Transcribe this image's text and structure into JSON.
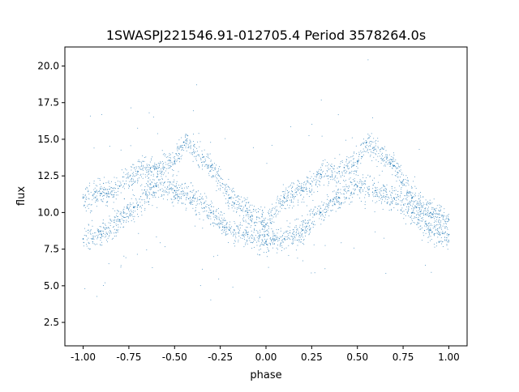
{
  "chart_data": {
    "type": "scatter",
    "title": "1SWASPJ221546.91-012705.4 Period 3578264.0s",
    "xlabel": "phase",
    "ylabel": "flux",
    "xlim": [
      -1.1,
      1.1
    ],
    "ylim": [
      0.9,
      21.3
    ],
    "xticks": [
      "-1.00",
      "-0.75",
      "-0.50",
      "-0.25",
      "0.00",
      "0.25",
      "0.50",
      "0.75",
      "1.00"
    ],
    "xtick_values": [
      -1,
      -0.75,
      -0.5,
      -0.25,
      0,
      0.25,
      0.5,
      0.75,
      1
    ],
    "yticks": [
      "2.5",
      "5.0",
      "7.5",
      "10.0",
      "12.5",
      "15.0",
      "17.5",
      "20.0"
    ],
    "ytick_values": [
      2.5,
      5,
      7.5,
      10,
      12.5,
      15,
      17.5,
      20
    ],
    "grid": false,
    "marker_color": "#1f77b4",
    "series": [
      {
        "x": [
          -1,
          -0.9,
          -0.8,
          -0.7,
          -0.6,
          -0.5,
          -0.45,
          -0.3,
          -0.2,
          -0.1,
          0,
          0.1,
          0.2,
          0.3,
          0.4,
          0.5,
          0.55,
          0.7,
          0.8,
          0.9,
          1
        ],
        "y": [
          11,
          11.3,
          11.8,
          12.8,
          13,
          13.5,
          14.8,
          13.2,
          11,
          10,
          9.2,
          11,
          11.5,
          12.6,
          12.8,
          13.5,
          14.8,
          13.2,
          11,
          10,
          9.5
        ]
      },
      {
        "x": [
          -1,
          -0.9,
          -0.8,
          -0.7,
          -0.6,
          -0.5,
          -0.4,
          -0.3,
          -0.2,
          -0.1,
          0,
          0.1,
          0.2,
          0.3,
          0.4,
          0.5,
          0.6,
          0.7,
          0.8,
          0.9,
          1
        ],
        "y": [
          8.2,
          8.5,
          9.5,
          10.5,
          11.8,
          11.5,
          11,
          10,
          8.8,
          8.5,
          8.0,
          8.2,
          8.8,
          10,
          11,
          11.8,
          11.5,
          11,
          10,
          8.8,
          8.5
        ]
      }
    ]
  }
}
